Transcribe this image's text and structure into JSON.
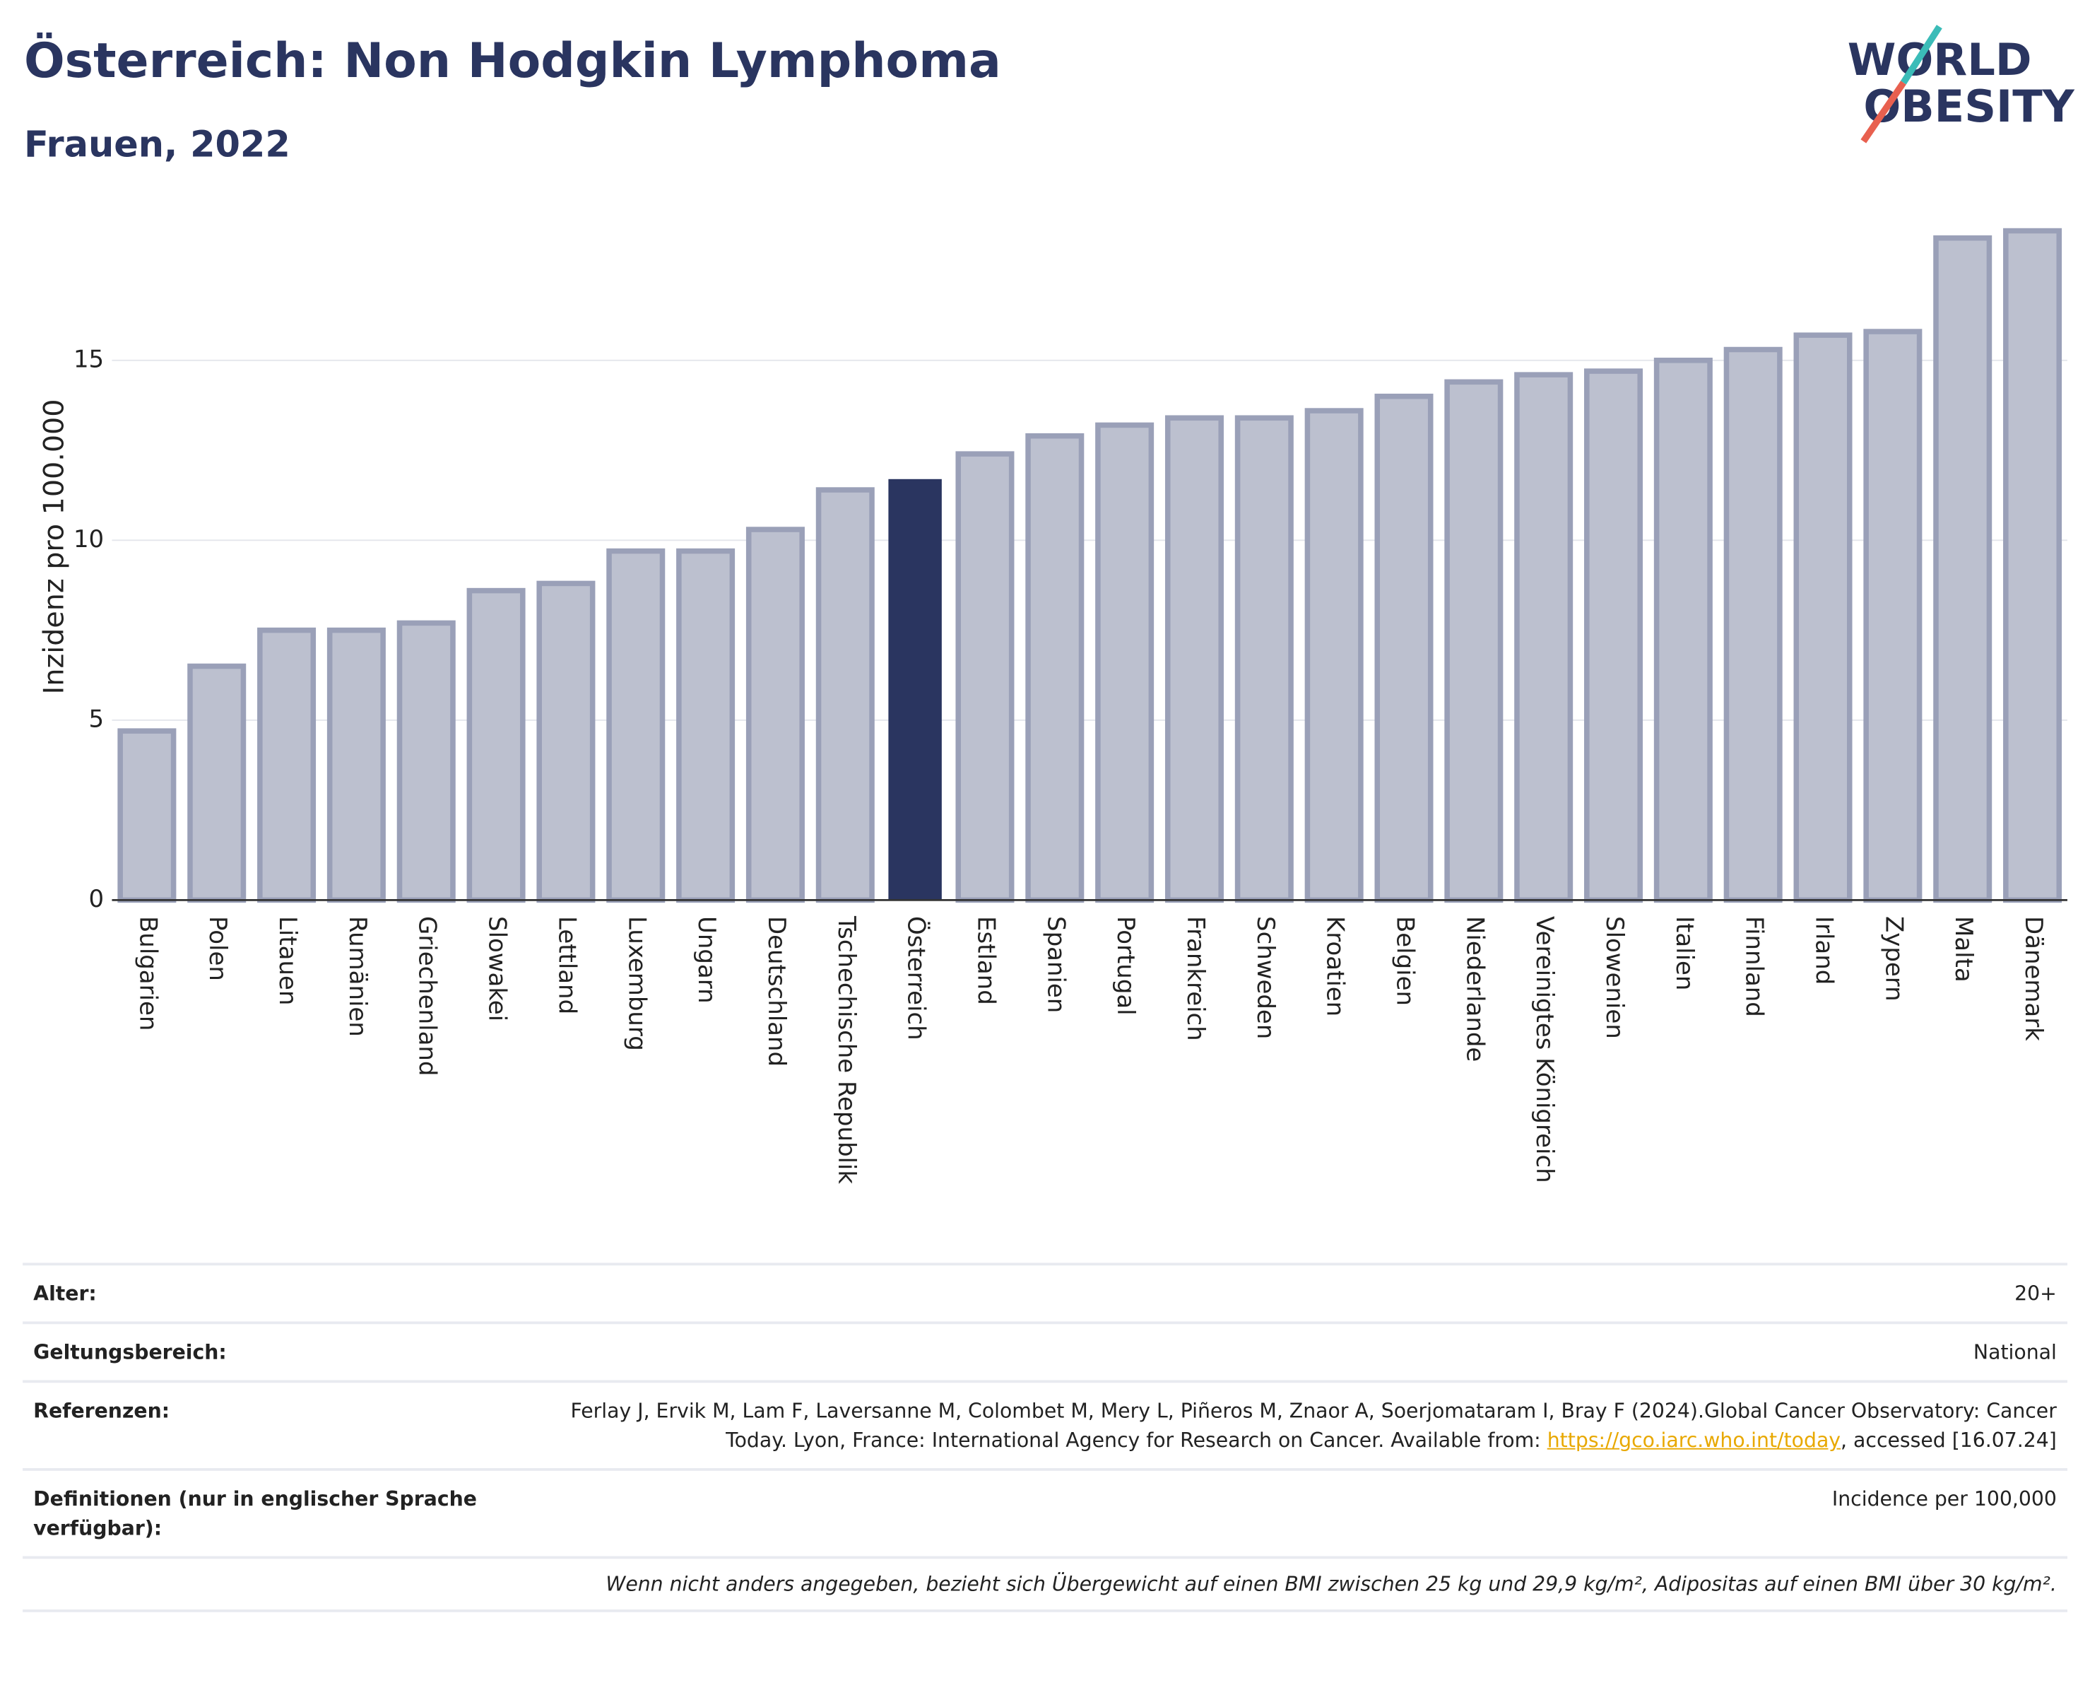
{
  "chart_data": {
    "type": "bar",
    "title": "Österreich: Non Hodgkin Lymphoma",
    "subtitle": "Frauen, 2022",
    "y_label": "Inzidenz pro 100.000",
    "categories": [
      "Bulgarien",
      "Polen",
      "Litauen",
      "Rumänien",
      "Griechenland",
      "Slowakei",
      "Lettland",
      "Luxemburg",
      "Ungarn",
      "Deutschland",
      "Tschechische Republik",
      "Österreich",
      "Estland",
      "Spanien",
      "Portugal",
      "Frankreich",
      "Schweden",
      "Kroatien",
      "Belgien",
      "Niederlande",
      "Vereinigtes Königreich",
      "Slowenien",
      "Italien",
      "Finnland",
      "Irland",
      "Zypern",
      "Malta",
      "Dänemark"
    ],
    "values": [
      4.7,
      6.5,
      7.5,
      7.5,
      7.7,
      8.6,
      8.8,
      9.7,
      9.7,
      10.3,
      11.4,
      11.7,
      12.4,
      12.9,
      13.2,
      13.4,
      13.4,
      13.6,
      14.0,
      14.4,
      14.6,
      14.7,
      15.0,
      15.3,
      15.7,
      15.8,
      18.4,
      18.6
    ],
    "colors": [
      "#bcc0cf",
      "#bcc0cf",
      "#bcc0cf",
      "#bcc0cf",
      "#bcc0cf",
      "#bcc0cf",
      "#bcc0cf",
      "#bcc0cf",
      "#bcc0cf",
      "#bcc0cf",
      "#bcc0cf",
      "#2a3560",
      "#bcc0cf",
      "#bcc0cf",
      "#bcc0cf",
      "#bcc0cf",
      "#bcc0cf",
      "#bcc0cf",
      "#bcc0cf",
      "#bcc0cf",
      "#bcc0cf",
      "#bcc0cf",
      "#bcc0cf",
      "#bcc0cf",
      "#bcc0cf",
      "#bcc0cf",
      "#bcc0cf",
      "#bcc0cf"
    ],
    "ylim": [
      0,
      18.9
    ],
    "yticks": [
      0,
      5,
      10,
      15
    ],
    "grid": true
  },
  "logo": {
    "line1": "WORLD",
    "line2": "OBESITY"
  },
  "footer": {
    "rows": [
      {
        "label": "Alter:",
        "value": "20+"
      },
      {
        "label": "Geltungsbereich:",
        "value": "National"
      },
      {
        "label": "Referenzen:",
        "value_before": "Ferlay J, Ervik M, Lam F, Laversanne M, Colombet M, Mery L, Piñeros M, Znaor A, Soerjomataram I, Bray F (2024).Global Cancer Observatory: Cancer Today. Lyon, France: International Agency for Research on Cancer. Available from: ",
        "link": "https://gco.iarc.who.int/today",
        "value_after": ", accessed [16.07.24]"
      },
      {
        "label": "Definitionen (nur in englischer Sprache verfügbar):",
        "value": "Incidence per 100,000"
      }
    ],
    "note": "Wenn nicht anders angegeben, bezieht sich Übergewicht auf einen BMI zwischen 25 kg und 29,9 kg/m², Adipositas auf einen BMI über 30 kg/m²."
  }
}
